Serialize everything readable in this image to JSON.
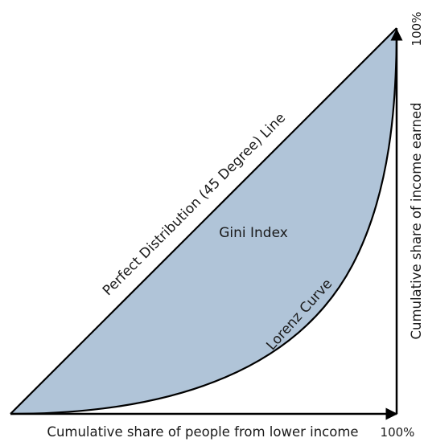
{
  "diagram": {
    "colors": {
      "area_fill": "#b0c4d8",
      "line": "#000000",
      "text": "#1a1a1a"
    },
    "labels": {
      "perfect_line": "Perfect Distribution (45 Degree) Line",
      "gini": "Gini Index",
      "lorenz": "Lorenz Curve",
      "x_axis": "Cumulative share of people from lower income",
      "x_max": "100%",
      "y_axis": "Cumulative share of income earned",
      "y_max": "100%"
    }
  }
}
